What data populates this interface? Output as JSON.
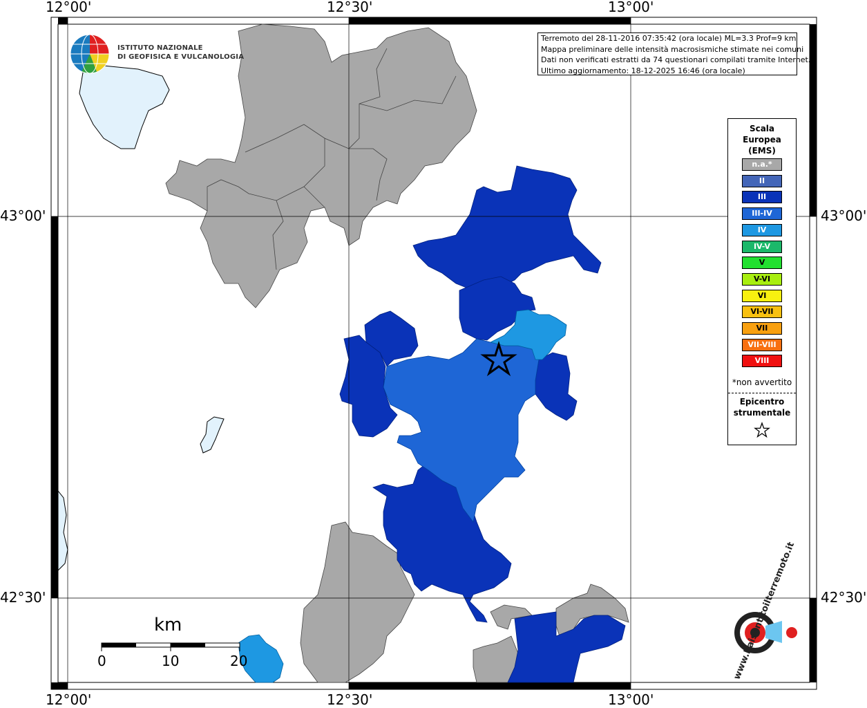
{
  "map": {
    "coord_labels": {
      "top": [
        "12°00'",
        "12°30'",
        "13°00'"
      ],
      "bottom": [
        "12°00'",
        "12°30'",
        "13°00'"
      ],
      "left": [
        "43°00'",
        "42°30'"
      ],
      "right": [
        "43°00'",
        "42°30'"
      ]
    },
    "info_box": {
      "line1": "Terremoto del 28-11-2016 07:35:42 (ora locale) ML=3.3 Prof=9 km",
      "line2": "Mappa preliminare delle intensità macrosismiche stimate nei comuni",
      "line3": "Dati non verificati estratti da 74 questionari compilati tramite Internet.",
      "line4": "Ultimo aggiornamento: 18-12-2025 16:46 (ora locale)"
    },
    "logo_ingv": {
      "line1": "ISTITUTO NAZIONALE",
      "line2": "DI GEOFISICA E VULCANOLOGIA"
    },
    "logo_hsit": {
      "text": "www.haisentitoilterremoto.it"
    },
    "scalebar": {
      "unit": "km",
      "ticks": [
        "0",
        "10",
        "20"
      ]
    }
  },
  "legend": {
    "title_line1": "Scala",
    "title_line2": "Europea",
    "title_line3": "(EMS)",
    "items": [
      {
        "label": "n.a.*",
        "color": "#a8a8a8"
      },
      {
        "label": "II",
        "color": "#4466b8"
      },
      {
        "label": "III",
        "color": "#0a33b8"
      },
      {
        "label": "III-IV",
        "color": "#1e66d6"
      },
      {
        "label": "IV",
        "color": "#1e98e2"
      },
      {
        "label": "IV-V",
        "color": "#1bb86a"
      },
      {
        "label": "V",
        "color": "#22e030"
      },
      {
        "label": "V-VI",
        "color": "#a8ee10"
      },
      {
        "label": "VI",
        "color": "#f8f010"
      },
      {
        "label": "VI-VII",
        "color": "#f8c010"
      },
      {
        "label": "VII",
        "color": "#f8a010"
      },
      {
        "label": "VII-VIII",
        "color": "#f87010"
      },
      {
        "label": "VIII",
        "color": "#f01010"
      }
    ],
    "note": "*non avvertito",
    "epicenter_line1": "Epicentro",
    "epicenter_line2": "strumentale"
  },
  "colors": {
    "na": "#a8a8a8",
    "III": "#0a33b8",
    "III-IV": "#1e66d6",
    "IV": "#1e98e2",
    "lake": "#e2f2fc"
  }
}
